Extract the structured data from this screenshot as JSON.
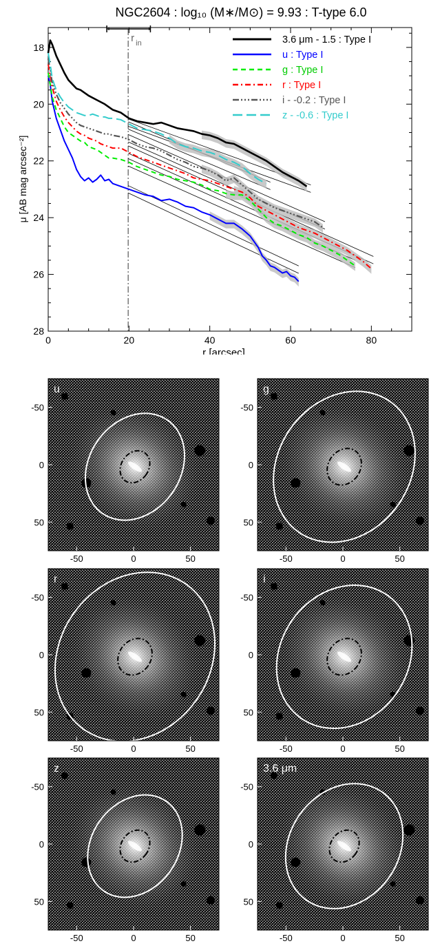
{
  "chart_data": [
    {
      "type": "line",
      "title": "NGC2604 : log₁₀ (M∗/M⊙) = 9.93 : T-type 6.0",
      "xlabel": "r [arcsec]",
      "ylabel": "μ [AB mag arcsec⁻²]",
      "xlim": [
        0,
        90
      ],
      "ylim": [
        28,
        17.3
      ],
      "y_inverted": true,
      "x_ticks": [
        0,
        20,
        40,
        60,
        80
      ],
      "y_ticks": [
        18,
        20,
        22,
        24,
        26,
        28
      ],
      "x_tick_labels": [
        "0",
        "20",
        "40",
        "60",
        "80"
      ],
      "y_tick_labels": [
        "18",
        "20",
        "22",
        "24",
        "26",
        "28"
      ],
      "legend_position": "top-right",
      "r_in": {
        "label": "r",
        "subscript": "in",
        "value": 19.8,
        "err_low": 14.5,
        "err_high": 25.3
      },
      "series": [
        {
          "name": "3.6 μm - 1.5 : Type I",
          "color": "#000000",
          "dash": "",
          "width": 2.6,
          "x": [
            0,
            0.5,
            1,
            2,
            3,
            4,
            5,
            6,
            7,
            8,
            10,
            12,
            14,
            16,
            18,
            20,
            22,
            24,
            26,
            28,
            30,
            32,
            34,
            36,
            38,
            40,
            42,
            44,
            46,
            48,
            50,
            52,
            54,
            56,
            58,
            60,
            62,
            64
          ],
          "y": [
            18.2,
            17.75,
            17.9,
            18.3,
            18.6,
            18.9,
            19.15,
            19.3,
            19.45,
            19.5,
            19.7,
            19.85,
            20.0,
            20.2,
            20.3,
            20.5,
            20.6,
            20.65,
            20.7,
            20.65,
            20.75,
            20.85,
            20.9,
            20.95,
            21.05,
            21.1,
            21.2,
            21.35,
            21.4,
            21.55,
            21.7,
            21.85,
            22.0,
            22.2,
            22.4,
            22.55,
            22.7,
            22.9
          ],
          "fit": {
            "x0": 19.8,
            "x1": 65,
            "y0": 20.65,
            "slope": 0.0515,
            "offset": 0.13
          }
        },
        {
          "name": "u : Type I",
          "color": "#0000ff",
          "dash": "",
          "width": 2.0,
          "x": [
            0,
            0.5,
            1,
            2,
            3,
            4,
            5,
            6,
            7,
            8,
            9,
            10,
            11,
            12,
            13,
            14,
            15,
            16,
            18,
            20,
            22,
            24,
            26,
            28,
            30,
            32,
            34,
            36,
            38,
            40,
            42,
            44,
            46,
            48,
            50,
            52,
            53,
            54,
            55,
            56,
            57,
            58,
            59,
            60,
            61,
            62
          ],
          "y": [
            19.0,
            19.3,
            19.9,
            20.5,
            20.9,
            21.3,
            21.6,
            21.9,
            22.3,
            22.55,
            22.7,
            22.6,
            22.75,
            22.65,
            22.5,
            22.7,
            22.65,
            22.8,
            22.9,
            23.0,
            23.1,
            23.2,
            23.25,
            23.4,
            23.35,
            23.45,
            23.6,
            23.65,
            23.8,
            23.9,
            24.05,
            24.2,
            24.2,
            24.4,
            24.65,
            25.05,
            25.35,
            25.5,
            25.7,
            25.75,
            25.85,
            25.95,
            25.9,
            26.05,
            26.1,
            26.25
          ],
          "fit": {
            "x0": 19.8,
            "x1": 62,
            "y0": 23.0,
            "slope": 0.0671,
            "offset": 0.13
          }
        },
        {
          "name": "g : Type I",
          "color": "#00ee00",
          "dash": "7,5",
          "width": 2.0,
          "x": [
            0,
            0.5,
            1,
            2,
            3,
            4,
            5,
            6,
            7,
            8,
            9,
            10,
            11,
            12,
            13,
            14,
            15,
            16,
            18,
            20,
            22,
            24,
            26,
            28,
            30,
            32,
            34,
            36,
            38,
            40,
            42,
            44,
            46,
            48,
            50,
            52,
            54,
            56,
            58,
            60,
            62,
            64,
            66,
            68,
            70,
            72,
            74,
            76
          ],
          "y": [
            18.9,
            19.3,
            19.75,
            20.2,
            20.5,
            20.8,
            21.0,
            21.1,
            21.2,
            21.3,
            21.35,
            21.5,
            21.55,
            21.6,
            21.7,
            21.8,
            21.9,
            21.9,
            21.95,
            22.05,
            22.2,
            22.3,
            22.4,
            22.5,
            22.55,
            22.65,
            22.7,
            22.75,
            22.85,
            23.0,
            23.05,
            23.15,
            23.2,
            23.2,
            23.4,
            23.7,
            24.0,
            24.2,
            24.3,
            24.45,
            24.6,
            24.7,
            24.9,
            25.0,
            25.15,
            25.3,
            25.5,
            25.7
          ],
          "fit": {
            "x0": 19.8,
            "x1": 76,
            "y0": 22.05,
            "slope": 0.0637,
            "offset": 0.13
          }
        },
        {
          "name": "r : Type I",
          "color": "#ff0000",
          "dash": "8,4,2,4",
          "width": 2.0,
          "x": [
            0,
            0.5,
            1,
            2,
            3,
            4,
            5,
            6,
            7,
            8,
            9,
            10,
            11,
            12,
            13,
            14,
            15,
            16,
            18,
            20,
            22,
            24,
            26,
            28,
            30,
            32,
            34,
            36,
            38,
            40,
            42,
            44,
            46,
            48,
            50,
            52,
            54,
            56,
            58,
            60,
            62,
            64,
            66,
            68,
            70,
            72,
            74,
            76,
            78,
            80
          ],
          "y": [
            18.6,
            19.0,
            19.4,
            19.9,
            20.2,
            20.45,
            20.65,
            20.8,
            20.95,
            21.05,
            21.1,
            21.2,
            21.25,
            21.3,
            21.4,
            21.45,
            21.5,
            21.55,
            21.55,
            21.7,
            21.85,
            21.95,
            22.05,
            22.15,
            22.25,
            22.35,
            22.45,
            22.6,
            22.65,
            22.7,
            22.8,
            22.9,
            23.0,
            23.1,
            23.3,
            23.6,
            23.75,
            23.9,
            24.05,
            24.2,
            24.35,
            24.45,
            24.55,
            24.7,
            24.85,
            25.0,
            25.15,
            25.35,
            25.55,
            25.8
          ],
          "fit": {
            "x0": 19.8,
            "x1": 80.5,
            "y0": 21.6,
            "slope": 0.0642,
            "offset": 0.13
          }
        },
        {
          "name": "i - -0.2 : Type I",
          "color": "#555555",
          "dash": "9,3,2,3,2,3,2,3",
          "width": 2.2,
          "x": [
            0,
            0.5,
            1,
            2,
            3,
            4,
            5,
            6,
            7,
            8,
            9,
            10,
            11,
            12,
            13,
            14,
            15,
            16,
            18,
            20,
            22,
            24,
            26,
            28,
            30,
            32,
            34,
            36,
            38,
            40,
            42,
            44,
            46,
            48,
            50,
            52,
            54,
            56,
            58,
            60,
            62,
            64,
            66,
            68
          ],
          "y": [
            18.4,
            18.8,
            19.25,
            19.65,
            19.95,
            20.15,
            20.35,
            20.5,
            20.65,
            20.75,
            20.8,
            20.85,
            20.9,
            20.95,
            21.0,
            21.05,
            21.05,
            21.1,
            21.15,
            21.25,
            21.4,
            21.5,
            21.55,
            21.65,
            21.8,
            21.95,
            22.05,
            22.2,
            22.25,
            22.35,
            22.5,
            22.7,
            22.6,
            22.85,
            23.1,
            23.35,
            23.5,
            23.65,
            23.75,
            23.85,
            23.95,
            24.05,
            24.15,
            24.35
          ],
          "fit": {
            "x0": 19.8,
            "x1": 68.5,
            "y0": 21.2,
            "slope": 0.0631,
            "offset": 0.13
          }
        },
        {
          "name": "z - -0.6 : Type I",
          "color": "#33cccc",
          "dash": "14,6",
          "width": 2.0,
          "x": [
            0,
            0.5,
            1,
            2,
            3,
            4,
            5,
            6,
            7,
            8,
            9,
            10,
            11,
            12,
            13,
            14,
            15,
            16,
            18,
            20,
            22,
            24,
            26,
            28,
            30,
            32,
            34,
            36,
            38,
            40,
            42,
            44,
            46,
            48,
            50,
            52,
            54
          ],
          "y": [
            18.2,
            18.6,
            19.1,
            19.5,
            19.75,
            19.95,
            20.1,
            20.2,
            20.3,
            20.35,
            20.4,
            20.4,
            20.35,
            20.4,
            20.45,
            20.45,
            20.5,
            20.5,
            20.55,
            20.7,
            20.85,
            20.9,
            20.95,
            21.05,
            21.2,
            21.4,
            21.5,
            21.55,
            21.65,
            21.7,
            21.8,
            21.95,
            22.05,
            22.2,
            22.45,
            22.65,
            22.8
          ],
          "fit": {
            "x0": 19.8,
            "x1": 55,
            "y0": 20.75,
            "slope": 0.0605,
            "offset": 0.13
          }
        }
      ]
    },
    {
      "type": "image_grid",
      "panels": [
        {
          "label": "u",
          "x_tick_labels": [
            "-50",
            "0",
            "50"
          ],
          "y_tick_labels": [
            "50",
            "0",
            "-50"
          ],
          "outer_ellipse": {
            "rx": 40,
            "ry": 50,
            "rot": 35
          },
          "inner_ellipse": {
            "rx": 12,
            "ry": 15,
            "rot": 35
          }
        },
        {
          "label": "g",
          "x_tick_labels": [
            "-50",
            "0",
            "50"
          ],
          "y_tick_labels": [
            "50",
            "0",
            "-50"
          ],
          "outer_ellipse": {
            "rx": 58,
            "ry": 70,
            "rot": 35
          },
          "inner_ellipse": {
            "rx": 14,
            "ry": 17,
            "rot": 35
          }
        },
        {
          "label": "r",
          "x_tick_labels": [
            "-50",
            "0",
            "50"
          ],
          "y_tick_labels": [
            "50",
            "0",
            "-50"
          ],
          "outer_ellipse": {
            "rx": 66,
            "ry": 78,
            "rot": 35
          },
          "inner_ellipse": {
            "rx": 14,
            "ry": 17,
            "rot": 35
          }
        },
        {
          "label": "i",
          "x_tick_labels": [
            "-50",
            "0",
            "50"
          ],
          "y_tick_labels": [
            "50",
            "0",
            "-50"
          ],
          "outer_ellipse": {
            "rx": 56,
            "ry": 66,
            "rot": 35
          },
          "inner_ellipse": {
            "rx": 14,
            "ry": 17,
            "rot": 35
          }
        },
        {
          "label": "z",
          "x_tick_labels": [
            "-50",
            "0",
            "50"
          ],
          "y_tick_labels": [
            "50",
            "0",
            "-50"
          ],
          "outer_ellipse": {
            "rx": 38,
            "ry": 48,
            "rot": 35
          },
          "inner_ellipse": {
            "rx": 12,
            "ry": 15,
            "rot": 35
          }
        },
        {
          "label": "3.6 μm",
          "x_tick_labels": [
            "-50",
            "0",
            "50"
          ],
          "y_tick_labels": [
            "50",
            "0",
            "-50"
          ],
          "outer_ellipse": {
            "rx": 48,
            "ry": 58,
            "rot": 35
          },
          "inner_ellipse": {
            "rx": 12,
            "ry": 15,
            "rot": 35
          }
        }
      ]
    }
  ]
}
